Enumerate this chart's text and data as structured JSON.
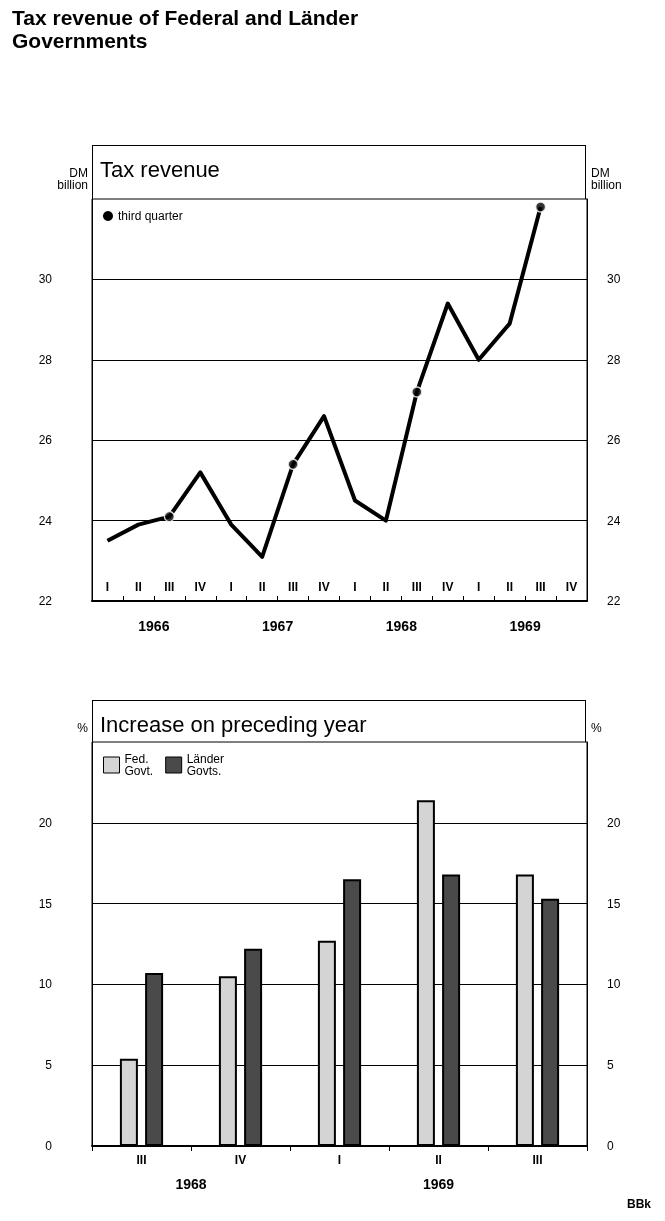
{
  "chart_data": [
    {
      "type": "line",
      "title": "Tax revenue of Federal and Länder Governments",
      "subtitle": "Tax revenue",
      "ylabel": "DM billion",
      "y2label": "DM billion",
      "categories": [
        "I",
        "II",
        "III",
        "IV",
        "I",
        "II",
        "III",
        "IV",
        "I",
        "II",
        "III",
        "IV",
        "I",
        "II",
        "III",
        "IV"
      ],
      "series": [
        {
          "color": "#000000",
          "values": [
            23.5,
            23.9,
            24.1,
            25.2,
            23.9,
            23.1,
            25.4,
            26.6,
            24.5,
            24.0,
            27.2,
            29.4,
            28.0,
            28.9,
            31.8,
            null
          ]
        },
        {
          "type": "scatter",
          "name": "third quarter",
          "color": "#000000",
          "marker": "circle",
          "values": [
            null,
            null,
            24.1,
            null,
            null,
            null,
            25.4,
            null,
            null,
            null,
            27.2,
            null,
            null,
            null,
            31.8,
            null
          ]
        }
      ],
      "ylim": [
        22,
        32
      ],
      "yticks": [
        22,
        24,
        26,
        28,
        30
      ],
      "y2lim": [
        22,
        32
      ],
      "y2ticks": [
        22,
        24,
        26,
        28,
        30
      ],
      "grid": "y",
      "legend": "top left",
      "annotations": [
        "1966",
        "1967",
        "1968",
        "1969"
      ]
    },
    {
      "type": "bar",
      "title": "Increase on preceding year",
      "ylabel": "%",
      "y2label": "%",
      "categories": [
        "III",
        "IV",
        "I",
        "II",
        "III"
      ],
      "series": [
        {
          "name": "Fed. Govt.",
          "color": "#d4d4d4",
          "values": [
            5.4,
            10.5,
            12.7,
            21.4,
            16.8
          ]
        },
        {
          "name": "Länder Govts.",
          "color": "#4a4a4a",
          "values": [
            10.7,
            12.2,
            16.5,
            16.8,
            15.3
          ]
        }
      ],
      "ylim": [
        0,
        25
      ],
      "yticks": [
        0,
        5,
        10,
        15,
        20
      ],
      "y2lim": [
        0,
        25
      ],
      "y2ticks": [
        0,
        5,
        10,
        15,
        20
      ],
      "grid": "y",
      "legend": "top left",
      "annotations": [
        "1968",
        "1969",
        "BBk"
      ]
    }
  ]
}
